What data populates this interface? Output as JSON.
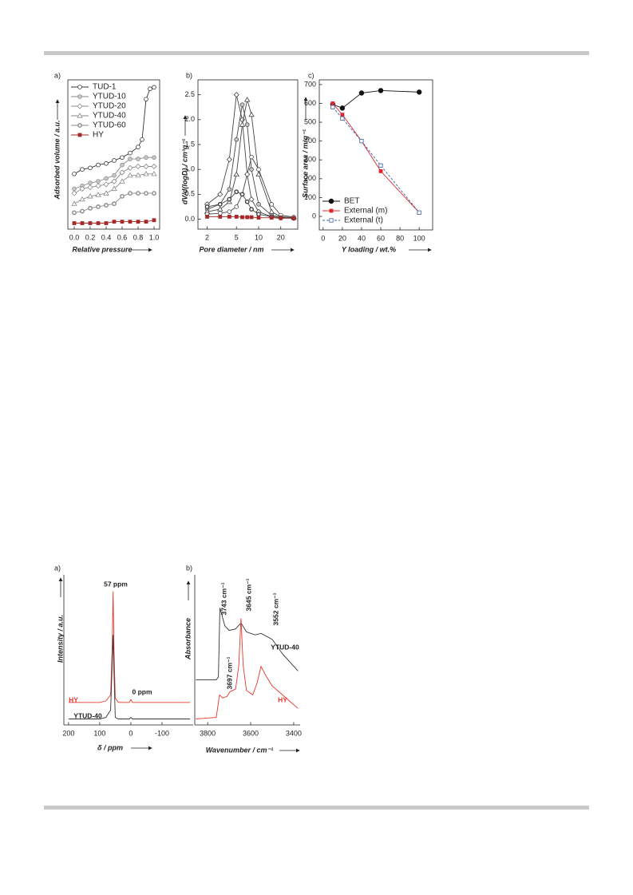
{
  "chart_data": [
    {
      "type": "line",
      "label": "a)",
      "xlabel": "Relative pressure",
      "ylabel": "Adsorbed volume / a.u.",
      "xlim": [
        -0.08,
        1.07
      ],
      "xticks": [
        {
          "value": 0,
          "label": "0.0"
        },
        0.2,
        0.4,
        0.6,
        0.8,
        {
          "value": 1,
          "label": "1.0"
        }
      ],
      "ylim": [
        0,
        100
      ],
      "legend": "upper left",
      "series": [
        {
          "name": "TUD-1",
          "color": "#333333",
          "marker": "open-circle",
          "x": [
            0,
            0.1,
            0.2,
            0.3,
            0.4,
            0.5,
            0.6,
            0.7,
            0.8,
            0.85,
            0.9,
            0.95,
            1.0
          ],
          "values": [
            37,
            40,
            41,
            43,
            44,
            46,
            48,
            51,
            55,
            60,
            87,
            94,
            95
          ]
        },
        {
          "name": "YTUD-10",
          "color": "#8a8a8a",
          "marker": "half-circle",
          "x": [
            0,
            0.1,
            0.2,
            0.3,
            0.4,
            0.5,
            0.6,
            0.7,
            0.8,
            0.9,
            1.0
          ],
          "values": [
            27,
            29,
            31,
            32,
            34,
            36,
            43,
            47,
            47,
            48,
            48
          ]
        },
        {
          "name": "YTUD-20",
          "color": "#8a8a8a",
          "marker": "diamond",
          "x": [
            0,
            0.1,
            0.2,
            0.3,
            0.4,
            0.5,
            0.6,
            0.7,
            0.8,
            0.9,
            1.0
          ],
          "values": [
            24,
            27,
            28,
            29,
            30,
            32,
            38,
            41,
            42,
            42,
            42
          ]
        },
        {
          "name": "YTUD-40",
          "color": "#8a8a8a",
          "marker": "triangle",
          "x": [
            0,
            0.1,
            0.2,
            0.3,
            0.4,
            0.5,
            0.6,
            0.7,
            0.8,
            0.9,
            1.0
          ],
          "values": [
            17,
            20,
            22,
            23,
            24,
            27,
            32,
            36,
            36,
            37,
            37
          ]
        },
        {
          "name": "YTUD-60",
          "color": "#8a8a8a",
          "marker": "circle-dot",
          "x": [
            0,
            0.1,
            0.2,
            0.3,
            0.4,
            0.5,
            0.6,
            0.7,
            0.8,
            0.9,
            1.0
          ],
          "values": [
            11,
            12,
            14,
            15,
            16,
            17,
            22,
            24,
            24,
            24,
            24
          ]
        },
        {
          "name": "HY",
          "color": "#a52a2a",
          "marker": "filled-square",
          "x": [
            0,
            0.1,
            0.2,
            0.3,
            0.4,
            0.5,
            0.6,
            0.7,
            0.8,
            0.9,
            1.0
          ],
          "values": [
            4,
            4,
            4,
            4,
            4,
            5,
            5,
            5,
            5,
            5,
            6
          ]
        }
      ]
    },
    {
      "type": "line",
      "label": "b)",
      "xlabel": "Pore diameter / nm",
      "ylabel": "dV/d(logD) / cm³g⁻¹",
      "xlog": true,
      "xlim": [
        1.5,
        34
      ],
      "xticks": [
        2,
        5,
        10,
        20
      ],
      "ylim": [
        -0.2,
        2.8
      ],
      "yticks": [
        {
          "value": 0,
          "label": "0.0"
        },
        0.5,
        {
          "value": 1,
          "label": "1.0"
        },
        1.5,
        {
          "value": 2,
          "label": "2.0"
        },
        2.5
      ],
      "series": [
        {
          "color": "#444444",
          "marker": "diamond",
          "x": [
            2,
            3,
            4,
            5,
            6,
            7,
            8,
            10,
            15,
            20,
            30
          ],
          "values": [
            0.3,
            0.5,
            1.2,
            2.5,
            2.0,
            0.9,
            0.4,
            0.15,
            0.05,
            0.03,
            0.02
          ]
        },
        {
          "color": "#444444",
          "marker": "half-circle",
          "x": [
            2,
            3,
            4,
            5,
            6,
            7,
            8,
            10,
            15,
            20,
            30
          ],
          "values": [
            0.2,
            0.3,
            0.6,
            1.6,
            2.3,
            1.9,
            1.0,
            0.3,
            0.08,
            0.04,
            0.02
          ]
        },
        {
          "color": "#444444",
          "marker": "triangle",
          "x": [
            2,
            3,
            4,
            5,
            6,
            7,
            8,
            10,
            15,
            20,
            30
          ],
          "values": [
            0.15,
            0.2,
            0.35,
            0.9,
            1.9,
            2.4,
            2.1,
            0.9,
            0.15,
            0.05,
            0.03
          ]
        },
        {
          "color": "#444444",
          "marker": "open-circle",
          "x": [
            2,
            3,
            4,
            5,
            6,
            7,
            8,
            10,
            15,
            20,
            30
          ],
          "values": [
            0.1,
            0.12,
            0.15,
            0.25,
            0.5,
            0.9,
            1.25,
            1.0,
            0.3,
            0.08,
            0.04
          ]
        },
        {
          "color": "#444444",
          "marker": "circle-dot",
          "x": [
            2,
            3,
            4,
            5,
            6,
            7,
            8,
            10,
            15,
            20,
            30
          ],
          "values": [
            0.25,
            0.3,
            0.4,
            0.55,
            0.5,
            0.35,
            0.2,
            0.1,
            0.05,
            0.03,
            0.02
          ]
        },
        {
          "color": "#a52a2a",
          "marker": "filled-square",
          "x": [
            2,
            3,
            4,
            5,
            6,
            7,
            8,
            10,
            15,
            20,
            30
          ],
          "values": [
            0.05,
            0.05,
            0.05,
            0.05,
            0.04,
            0.04,
            0.04,
            0.03,
            0.03,
            0.02,
            0.02
          ]
        }
      ]
    },
    {
      "type": "line",
      "label": "c)",
      "xlabel": "Y loading / wt.%",
      "ylabel": "Surface area / m²g⁻¹",
      "xlim": [
        -4,
        114
      ],
      "xticks": [
        0,
        20,
        40,
        60,
        80,
        100
      ],
      "ylim": [
        -72,
        725
      ],
      "yticks": [
        0,
        100,
        200,
        300,
        400,
        500,
        600,
        700
      ],
      "legend": "lower left",
      "series": [
        {
          "name": "BET",
          "color": "#111111",
          "marker": "filled-circle",
          "x": [
            10,
            20,
            40,
            60,
            100
          ],
          "values": [
            595,
            575,
            655,
            668,
            660
          ]
        },
        {
          "name": "External (m)",
          "color": "#e0262b",
          "marker": "filled-square",
          "x": [
            10,
            20,
            40,
            60,
            100
          ],
          "values": [
            600,
            540,
            400,
            240,
            20
          ]
        },
        {
          "name": "External (t)",
          "color": "#3a5fa8",
          "marker": "open-square",
          "dash": true,
          "x": [
            10,
            20,
            40,
            60,
            100
          ],
          "values": [
            580,
            520,
            400,
            270,
            20
          ]
        }
      ]
    },
    {
      "type": "line",
      "label": "a)",
      "xlabel": "δ / ppm",
      "ylabel": "Intensity / a.u.",
      "xlim": [
        215,
        -200
      ],
      "xticks": [
        200,
        100,
        0,
        -100
      ],
      "ylim": [
        0,
        100
      ],
      "annotations": [
        {
          "text": "57 ppm",
          "color": "#222222"
        },
        {
          "text": "0 ppm",
          "color": "#222222"
        },
        {
          "text": "HY",
          "color": "#e8362f"
        },
        {
          "text": "YTUD-40",
          "color": "#222222"
        }
      ],
      "series": [
        {
          "color": "#e8362f",
          "x": [
            200,
            150,
            100,
            80,
            65,
            60,
            57,
            54,
            50,
            40,
            20,
            5,
            0,
            -5,
            -20,
            -50,
            -100,
            -150,
            -190
          ],
          "values": [
            15,
            15,
            15,
            16,
            20,
            50,
            89,
            50,
            18,
            15,
            15,
            15,
            17,
            15,
            15,
            15,
            15,
            15,
            15
          ]
        },
        {
          "color": "#333333",
          "x": [
            200,
            150,
            100,
            80,
            65,
            60,
            57,
            54,
            50,
            40,
            20,
            5,
            0,
            -5,
            -20,
            -50,
            -100,
            -150,
            -190
          ],
          "values": [
            4,
            4,
            4,
            5,
            10,
            40,
            60,
            35,
            5,
            4,
            4,
            4,
            5,
            4,
            4,
            4,
            4,
            4,
            4
          ]
        }
      ]
    },
    {
      "type": "line",
      "label": "b)",
      "xlabel": "Wavenumber / cm⁻¹",
      "ylabel": "Absorbance",
      "xlim": [
        3860,
        3370
      ],
      "xticks": [
        3800,
        3600,
        3400
      ],
      "ylim": [
        0,
        100
      ],
      "annotations": [
        {
          "text": "3743 cm⁻¹",
          "color": "#222222"
        },
        {
          "text": "3697 cm⁻¹",
          "color": "#222222"
        },
        {
          "text": "3645 cm⁻¹",
          "color": "#222222"
        },
        {
          "text": "3552 cm⁻¹",
          "color": "#222222"
        },
        {
          "text": "YTUD-40",
          "color": "#222222"
        },
        {
          "text": "HY",
          "color": "#e8362f"
        }
      ],
      "series": [
        {
          "color": "#333333",
          "x": [
            3855,
            3760,
            3750,
            3743,
            3720,
            3700,
            3670,
            3645,
            3620,
            3580,
            3552,
            3500,
            3450,
            3380
          ],
          "values": [
            30,
            30,
            32,
            78,
            66,
            63,
            64,
            68,
            62,
            60,
            61,
            57,
            47,
            36
          ]
        },
        {
          "color": "#e8362f",
          "x": [
            3855,
            3760,
            3745,
            3730,
            3710,
            3697,
            3670,
            3655,
            3645,
            3635,
            3620,
            3590,
            3570,
            3552,
            3530,
            3500,
            3420,
            3380
          ],
          "values": [
            4,
            5,
            20,
            18,
            19,
            22,
            24,
            40,
            71,
            40,
            23,
            20,
            28,
            39,
            33,
            26,
            16,
            11
          ]
        }
      ]
    }
  ]
}
